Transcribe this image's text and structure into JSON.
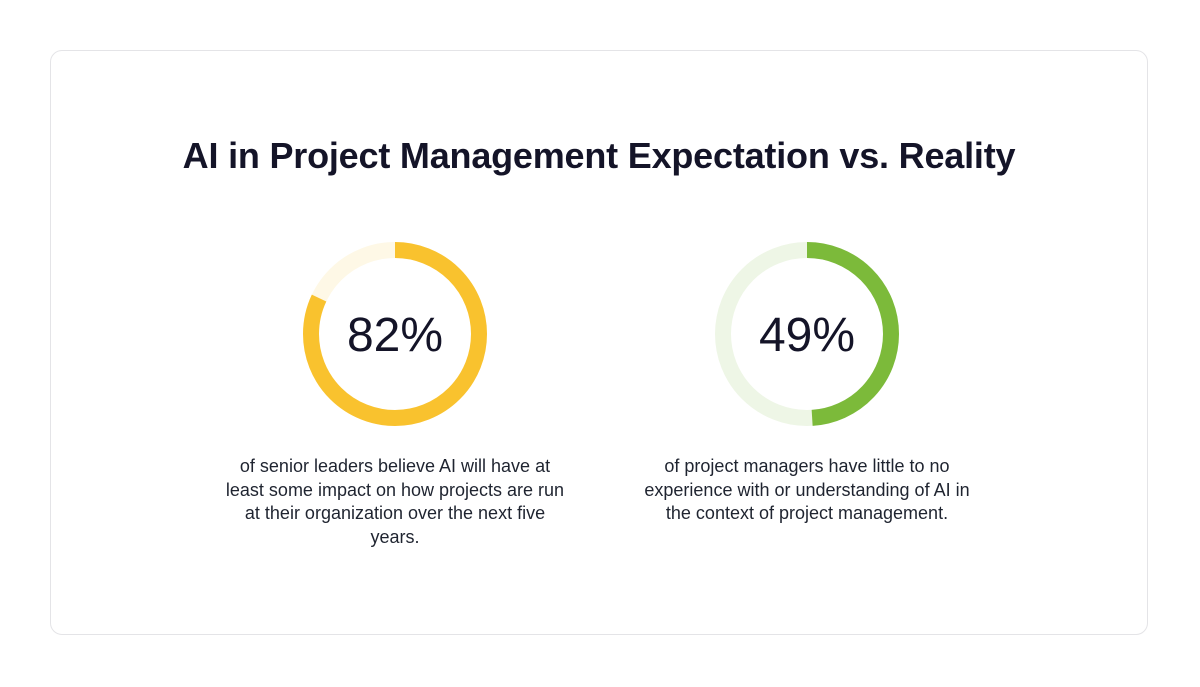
{
  "title": "AI in Project Management Expectation vs. Reality",
  "chart_data": [
    {
      "type": "pie",
      "title": "",
      "value": 82,
      "value_label": "82%",
      "description": "of senior leaders believe AI will have at least some impact on how projects are run at their organization over the next five years.",
      "colors": {
        "filled": "#F9C22E",
        "track": "#FEF8E6"
      }
    },
    {
      "type": "pie",
      "title": "",
      "value": 49,
      "value_label": "49%",
      "description": "of project managers have little to no experience with or understanding of AI in the context of project management.",
      "colors": {
        "filled": "#7CBA3A",
        "track": "#EEF6E6"
      }
    }
  ]
}
